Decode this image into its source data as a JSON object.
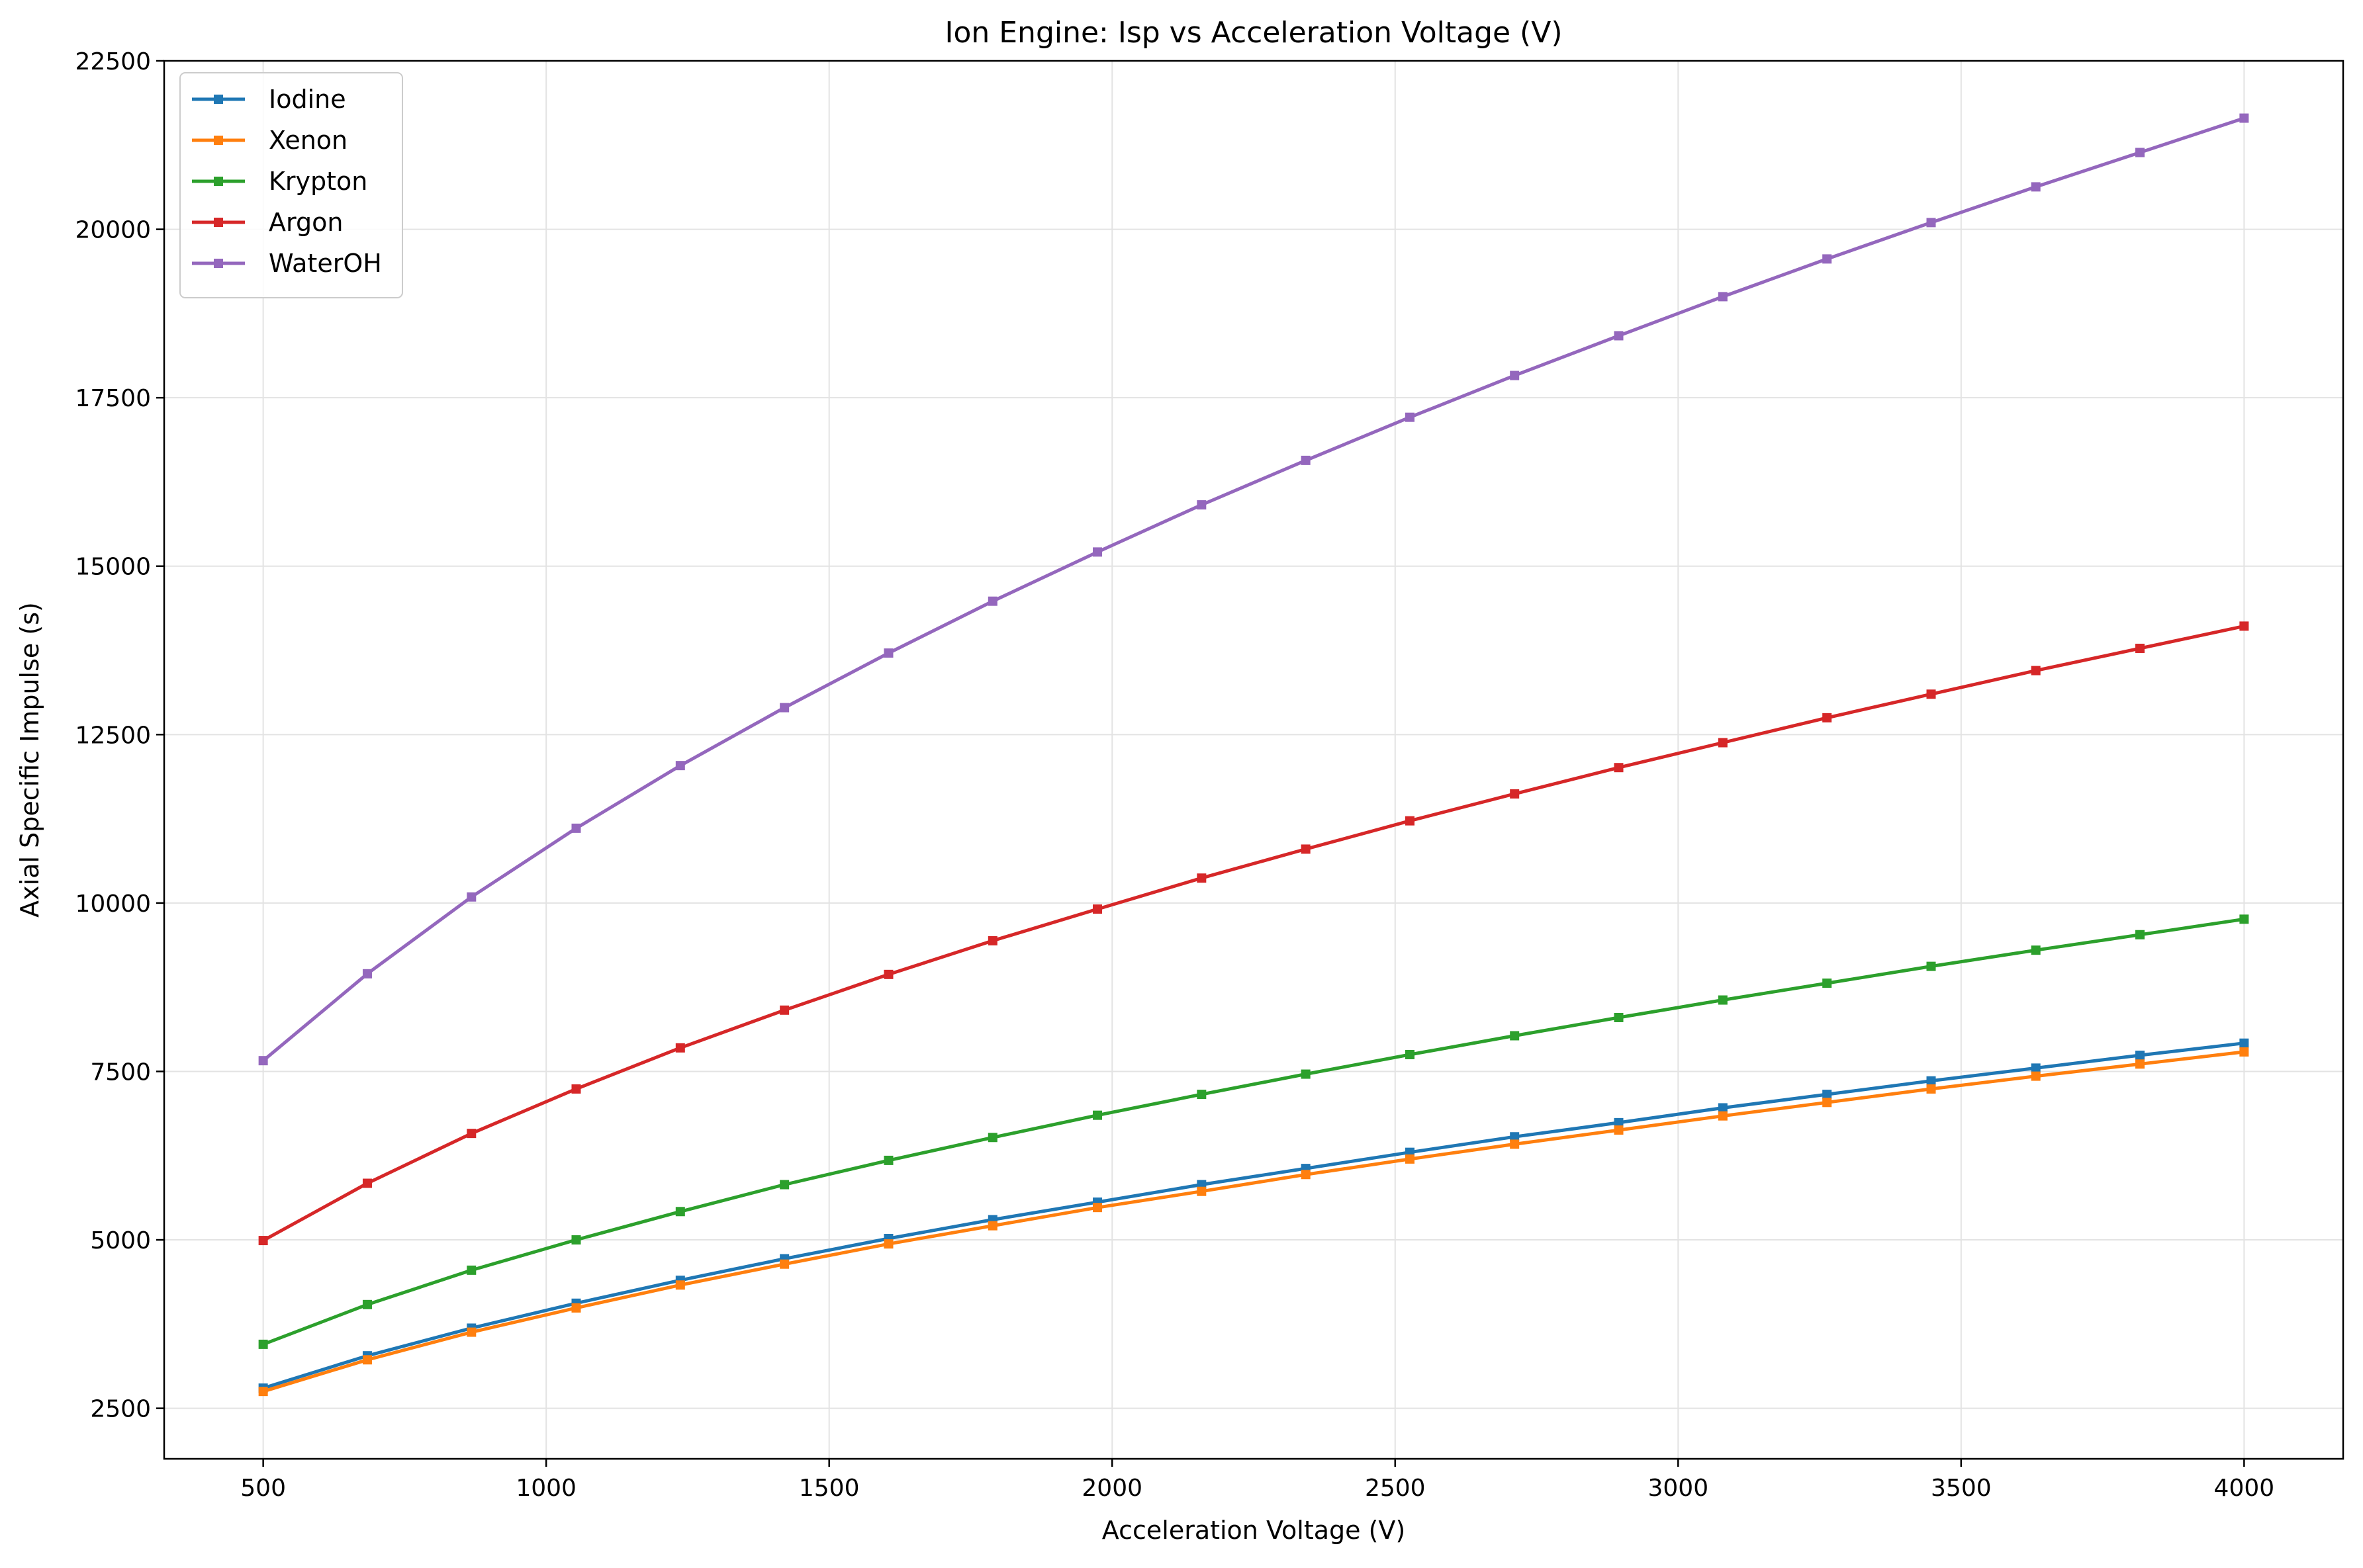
{
  "chart_data": {
    "type": "line",
    "title": "Ion Engine: Isp vs Acceleration Voltage (V)",
    "xlabel": "Acceleration Voltage (V)",
    "ylabel": "Axial Specific Impulse (s)",
    "xlim": [
      325,
      4175
    ],
    "ylim": [
      1750,
      22500
    ],
    "xticks": [
      500,
      1000,
      1500,
      2000,
      2500,
      3000,
      3500,
      4000
    ],
    "xtick_labels": [
      "500",
      "1000",
      "1500",
      "2000",
      "2500",
      "3000",
      "3500",
      "4000"
    ],
    "yticks": [
      2500,
      5000,
      7500,
      10000,
      12500,
      15000,
      17500,
      20000,
      22500
    ],
    "ytick_labels": [
      "2500",
      "5000",
      "7500",
      "10000",
      "12500",
      "15000",
      "17500",
      "20000",
      "22500"
    ],
    "grid": true,
    "legend_position": "top-left",
    "marker": "square",
    "x": [
      500,
      684,
      868,
      1053,
      1237,
      1421,
      1605,
      1789,
      1974,
      2158,
      2342,
      2526,
      2711,
      2895,
      3079,
      3263,
      3447,
      3632,
      3816,
      4000
    ],
    "series": [
      {
        "name": "Iodine",
        "color": "#1f77b4",
        "values": [
          2800,
          3280,
          3690,
          4060,
          4400,
          4720,
          5020,
          5300,
          5560,
          5820,
          6060,
          6300,
          6530,
          6740,
          6960,
          7160,
          7360,
          7550,
          7740,
          7920
        ]
      },
      {
        "name": "Xenon",
        "color": "#ff7f0e",
        "values": [
          2750,
          3220,
          3630,
          3990,
          4330,
          4640,
          4940,
          5210,
          5480,
          5720,
          5970,
          6200,
          6420,
          6630,
          6840,
          7040,
          7240,
          7430,
          7610,
          7790
        ]
      },
      {
        "name": "Krypton",
        "color": "#2ca02c",
        "values": [
          3450,
          4040,
          4550,
          5000,
          5420,
          5820,
          6180,
          6520,
          6850,
          7160,
          7460,
          7750,
          8030,
          8300,
          8560,
          8810,
          9060,
          9300,
          9530,
          9760
        ]
      },
      {
        "name": "Argon",
        "color": "#d62728",
        "values": [
          4990,
          5840,
          6580,
          7240,
          7850,
          8410,
          8940,
          9440,
          9910,
          10370,
          10800,
          11220,
          11620,
          12010,
          12380,
          12750,
          13100,
          13450,
          13780,
          14110
        ]
      },
      {
        "name": "WaterOH",
        "color": "#9467bd",
        "values": [
          7660,
          8950,
          10090,
          11110,
          12040,
          12900,
          13710,
          14480,
          15210,
          15910,
          16570,
          17210,
          17830,
          18420,
          19000,
          19560,
          20100,
          20630,
          21140,
          21650
        ]
      }
    ]
  }
}
